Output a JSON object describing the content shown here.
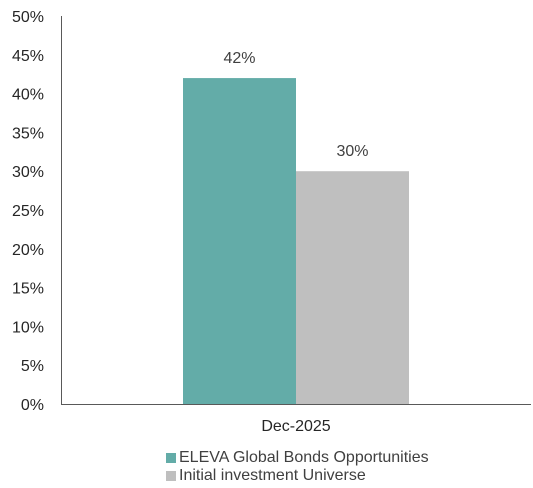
{
  "chart_data": {
    "type": "bar",
    "title": "",
    "xlabel": "",
    "ylabel": "",
    "categories": [
      "Dec-2025"
    ],
    "series": [
      {
        "name": "ELEVA Global Bonds Opportunities",
        "values": [
          42
        ],
        "label": "42%",
        "color": "#63aca8"
      },
      {
        "name": "Initial investment Universe",
        "values": [
          30
        ],
        "label": "30%",
        "color": "#bfbfbf"
      }
    ],
    "ylim": [
      0,
      50
    ],
    "yticks": [
      0,
      5,
      10,
      15,
      20,
      25,
      30,
      35,
      40,
      45,
      50
    ],
    "ytick_labels": [
      "0%",
      "5%",
      "10%",
      "15%",
      "20%",
      "25%",
      "30%",
      "35%",
      "40%",
      "45%",
      "50%"
    ],
    "grid": false,
    "legend_position": "bottom"
  }
}
